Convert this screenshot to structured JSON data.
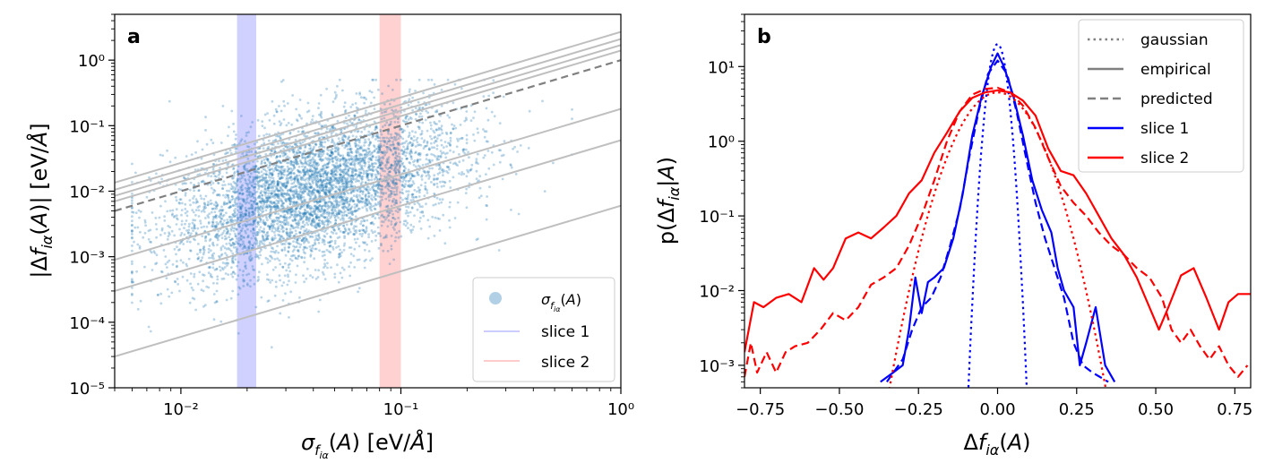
{
  "chart_data": [
    {
      "panel_label": "a",
      "type": "scatter",
      "xscale": "log",
      "yscale": "log",
      "xlabel": "σ_{f_{iα}}(A) [eV/Å]",
      "ylabel": "|Δf_{iα}(A)| [eV/Å]",
      "xlim": [
        0.005,
        1.0
      ],
      "ylim": [
        1e-05,
        5.0
      ],
      "x_tick_labels": [
        "10⁻²",
        "10⁻¹",
        "10⁰"
      ],
      "x_tick_values": [
        0.01,
        0.1,
        1
      ],
      "y_tick_labels": [
        "10⁻⁵",
        "10⁻⁴",
        "10⁻³",
        "10⁻²",
        "10⁻¹",
        "10⁰"
      ],
      "y_tick_values": [
        1e-05,
        0.0001,
        0.001,
        0.01,
        0.1,
        1
      ],
      "scatter": {
        "name": "σ_{f_{iα}}(A)",
        "color": "#1f77b4",
        "x_center": 0.04,
        "y_center": 0.01,
        "x_range": [
          0.006,
          0.6
        ],
        "y_range": [
          1.5e-05,
          0.5
        ]
      },
      "slices": [
        {
          "name": "slice 1",
          "range": [
            0.018,
            0.022
          ],
          "color": "#0000ff"
        },
        {
          "name": "slice 2",
          "range": [
            0.08,
            0.1
          ],
          "color": "#ff0000"
        }
      ],
      "reference_lines": {
        "slope": 1,
        "solid_intercepts_at_x1": [
          0.006,
          0.06,
          0.18,
          1.4,
          1.7,
          2.1,
          2.7
        ],
        "dashed_intercept_at_x1": 1.0,
        "solid_color": "#bfbfbf",
        "dashed_color": "#808080"
      },
      "legend": {
        "position": "lower-right",
        "entries": [
          "σ_{f_{iα}}(A)",
          "slice 1",
          "slice 2"
        ]
      }
    },
    {
      "panel_label": "b",
      "type": "line",
      "yscale": "log",
      "xlabel": "Δf_{iα}(A)",
      "ylabel": "p(Δf_{iα}|A)",
      "xlim": [
        -0.8,
        0.8
      ],
      "ylim": [
        0.0005,
        50
      ],
      "x_tick_labels": [
        "−0.75",
        "−0.50",
        "−0.25",
        "0.00",
        "0.25",
        "0.50",
        "0.75"
      ],
      "x_tick_values": [
        -0.75,
        -0.5,
        -0.25,
        0,
        0.25,
        0.5,
        0.75
      ],
      "y_tick_labels": [
        "10⁻³",
        "10⁻²",
        "10⁻¹",
        "10⁰",
        "10¹"
      ],
      "y_tick_values": [
        0.001,
        0.01,
        0.1,
        1,
        10
      ],
      "series": [
        {
          "name": "slice 1 gaussian",
          "color": "#0000ff",
          "style": "dotted",
          "gaussian": {
            "peak": 20,
            "sigma": 0.02
          }
        },
        {
          "name": "slice 1 empirical",
          "color": "#0000ff",
          "style": "solid",
          "x": [
            -0.37,
            -0.33,
            -0.3,
            -0.28,
            -0.26,
            -0.24,
            -0.22,
            -0.2,
            -0.17,
            -0.14,
            -0.11,
            -0.08,
            -0.05,
            -0.02,
            0,
            0.02,
            0.05,
            0.08,
            0.11,
            0.14,
            0.17,
            0.19,
            0.21,
            0.24,
            0.26,
            0.28,
            0.31,
            0.34,
            0.37
          ],
          "y": [
            0.0006,
            0.0008,
            0.001,
            0.003,
            0.015,
            0.005,
            0.013,
            0.015,
            0.02,
            0.05,
            0.2,
            1.2,
            4,
            10,
            15,
            10,
            4,
            1.2,
            0.3,
            0.12,
            0.06,
            0.02,
            0.01,
            0.006,
            0.001,
            0.002,
            0.006,
            0.001,
            0.0006
          ]
        },
        {
          "name": "slice 1 predicted",
          "color": "#0000ff",
          "style": "dashed",
          "x": [
            -0.35,
            -0.3,
            -0.27,
            -0.24,
            -0.21,
            -0.18,
            -0.15,
            -0.12,
            -0.09,
            -0.06,
            -0.03,
            0,
            0.03,
            0.06,
            0.09,
            0.12,
            0.15,
            0.18,
            0.21,
            0.24,
            0.27,
            0.3,
            0.35
          ],
          "y": [
            0.0006,
            0.0012,
            0.003,
            0.006,
            0.008,
            0.015,
            0.04,
            0.12,
            0.6,
            2.5,
            8,
            12,
            8,
            2.5,
            0.6,
            0.15,
            0.05,
            0.02,
            0.008,
            0.002,
            0.001,
            0.0008,
            0.0006
          ]
        },
        {
          "name": "slice 2 gaussian",
          "color": "#ff0000",
          "style": "dotted",
          "gaussian": {
            "peak": 4.5,
            "sigma": 0.08
          }
        },
        {
          "name": "slice 2 empirical",
          "color": "#ff0000",
          "style": "solid",
          "x": [
            -0.8,
            -0.77,
            -0.74,
            -0.7,
            -0.66,
            -0.62,
            -0.58,
            -0.55,
            -0.52,
            -0.48,
            -0.44,
            -0.4,
            -0.36,
            -0.32,
            -0.28,
            -0.24,
            -0.2,
            -0.16,
            -0.12,
            -0.08,
            -0.04,
            0,
            0.04,
            0.08,
            0.12,
            0.16,
            0.2,
            0.24,
            0.28,
            0.32,
            0.36,
            0.4,
            0.44,
            0.48,
            0.51,
            0.54,
            0.58,
            0.62,
            0.66,
            0.7,
            0.73,
            0.76,
            0.8
          ],
          "y": [
            0.0015,
            0.007,
            0.006,
            0.008,
            0.009,
            0.007,
            0.02,
            0.014,
            0.02,
            0.05,
            0.06,
            0.05,
            0.07,
            0.1,
            0.2,
            0.3,
            0.7,
            1.3,
            2.5,
            3.8,
            4.5,
            4.8,
            4.5,
            3.5,
            2.2,
            0.8,
            0.4,
            0.35,
            0.2,
            0.1,
            0.05,
            0.03,
            0.015,
            0.006,
            0.003,
            0.006,
            0.016,
            0.02,
            0.008,
            0.003,
            0.007,
            0.009,
            0.009
          ]
        },
        {
          "name": "slice 2 predicted",
          "color": "#ff0000",
          "style": "dashed",
          "x": [
            -0.8,
            -0.78,
            -0.76,
            -0.73,
            -0.7,
            -0.67,
            -0.64,
            -0.6,
            -0.56,
            -0.52,
            -0.48,
            -0.44,
            -0.4,
            -0.36,
            -0.32,
            -0.28,
            -0.24,
            -0.2,
            -0.16,
            -0.12,
            -0.08,
            -0.04,
            0,
            0.04,
            0.08,
            0.12,
            0.16,
            0.2,
            0.24,
            0.28,
            0.32,
            0.36,
            0.4,
            0.44,
            0.48,
            0.52,
            0.55,
            0.58,
            0.61,
            0.64,
            0.67,
            0.7,
            0.73,
            0.76,
            0.79
          ],
          "y": [
            0.0007,
            0.002,
            0.0008,
            0.0015,
            0.0008,
            0.0015,
            0.0018,
            0.002,
            0.003,
            0.005,
            0.004,
            0.006,
            0.012,
            0.015,
            0.02,
            0.04,
            0.1,
            0.3,
            1,
            2.5,
            4.2,
            5,
            5.2,
            4.5,
            3,
            1.5,
            0.6,
            0.25,
            0.15,
            0.1,
            0.06,
            0.04,
            0.03,
            0.02,
            0.015,
            0.008,
            0.003,
            0.002,
            0.003,
            0.0018,
            0.0012,
            0.0018,
            0.001,
            0.0007,
            0.001
          ]
        }
      ],
      "legend": {
        "position": "top-right",
        "entries": [
          {
            "label": "gaussian",
            "color": "#808080",
            "style": "dotted"
          },
          {
            "label": "empirical",
            "color": "#808080",
            "style": "solid"
          },
          {
            "label": "predicted",
            "color": "#808080",
            "style": "dashed"
          },
          {
            "label": "slice 1",
            "color": "#0000ff",
            "style": "solid"
          },
          {
            "label": "slice 2",
            "color": "#ff0000",
            "style": "solid"
          }
        ]
      }
    }
  ]
}
